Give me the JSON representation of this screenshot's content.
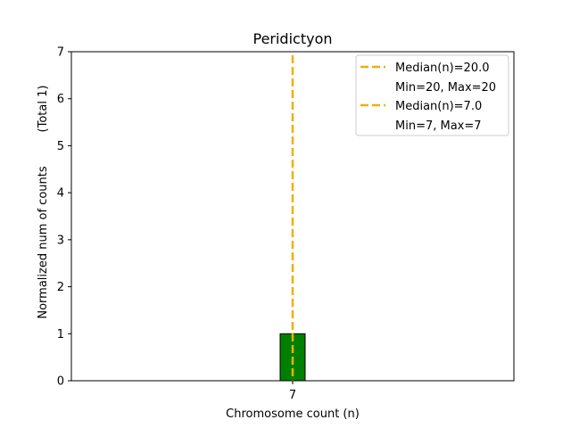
{
  "chart_data": {
    "type": "bar",
    "title": "Peridictyon",
    "xlabel": "Chromosome count (n)",
    "ylabel": "Normalized num of counts",
    "ylabel_note": "(Total 1)",
    "categories": [
      "7"
    ],
    "values": [
      1
    ],
    "ylim": [
      0,
      7
    ],
    "yticks": [
      "0",
      "1",
      "2",
      "3",
      "4",
      "5",
      "6",
      "7"
    ],
    "grid": false,
    "legend_position": "top-right",
    "bar_color": "#008000",
    "median_line_color": "#f0b000",
    "median_line_x": 7,
    "legend": [
      {
        "label": "Median(n)=20.0",
        "sublabel": "Min=20, Max=20"
      },
      {
        "label": "Median(n)=7.0",
        "sublabel": "Min=7, Max=7"
      }
    ]
  }
}
